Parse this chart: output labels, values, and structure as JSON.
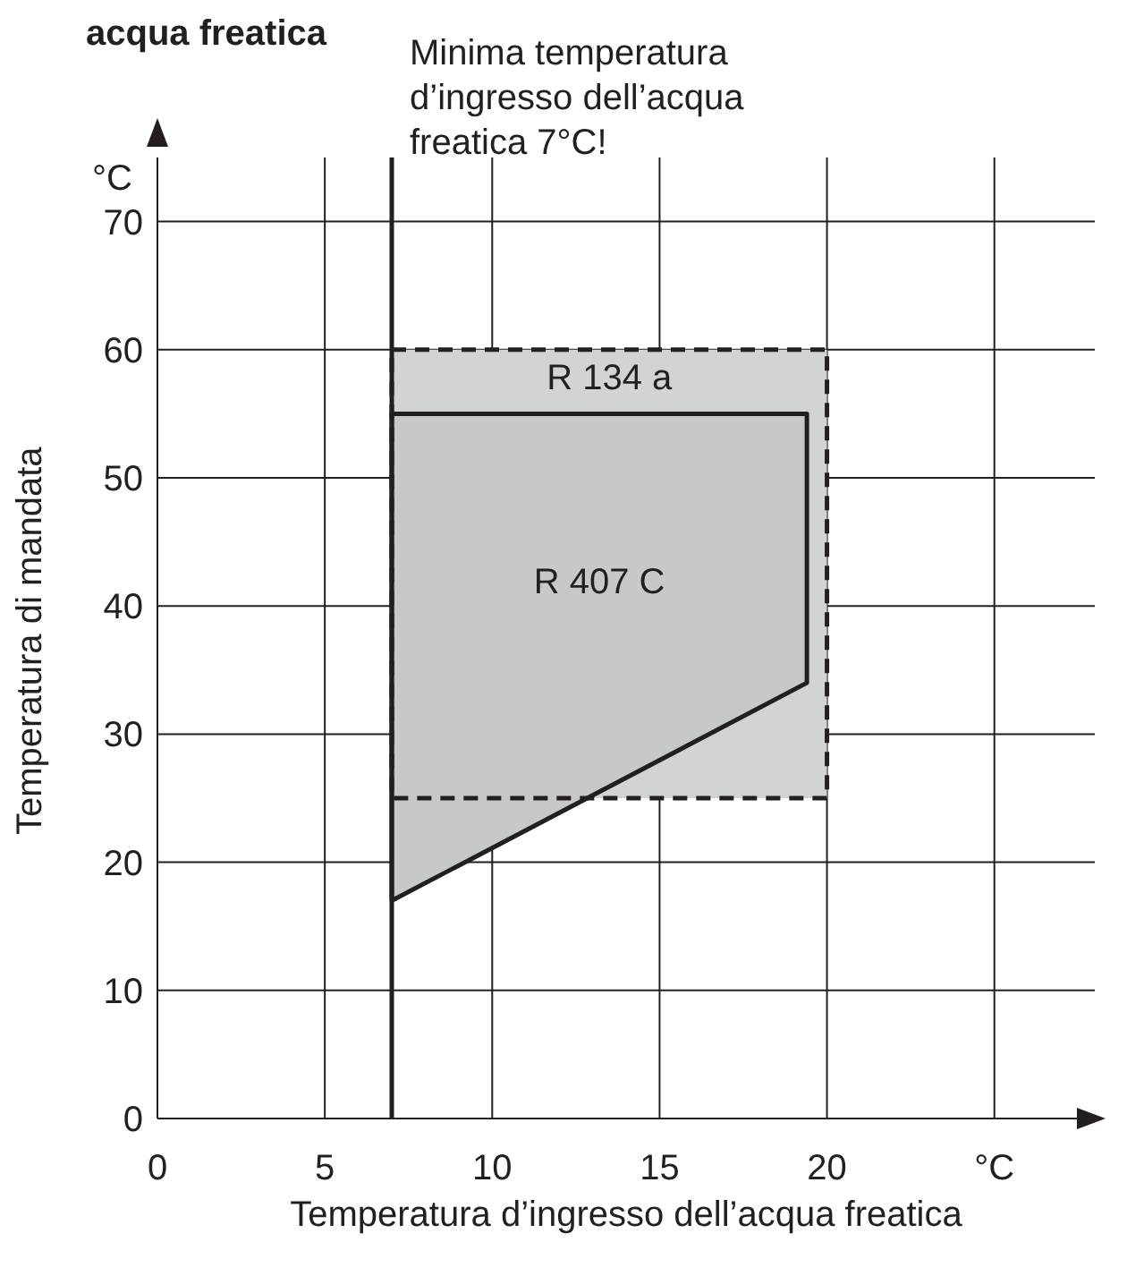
{
  "chart_data": {
    "type": "area",
    "title": "acqua freatica",
    "xlabel": "Temperatura d’ingresso dell’acqua freatica",
    "ylabel": "Temperatura di mandata",
    "annotations": [
      "°C"
    ],
    "xlim": [
      0,
      28
    ],
    "xticks": [
      0,
      5,
      10,
      15,
      20,
      {
        "value": 25,
        "label": "°C"
      }
    ],
    "ylim": [
      0,
      75
    ],
    "yticks": [
      0,
      10,
      20,
      30,
      40,
      50,
      60,
      70
    ],
    "grid": true,
    "marker": "none",
    "series": [
      {
        "name": "R 134 a",
        "color": "#d1d3d4",
        "line_style": "dashed",
        "x": [
          7,
          20,
          20,
          7,
          7
        ],
        "values": [
          60,
          60,
          25,
          25,
          60
        ]
      },
      {
        "name": "R 407 C",
        "color": "#c6c8ca",
        "line_style": "solid",
        "x": [
          7,
          19.4,
          19.4,
          7,
          7
        ],
        "values": [
          17,
          34,
          55,
          55,
          17
        ]
      }
    ],
    "ref_lines": [
      {
        "axis": "x",
        "value": 7,
        "label": "Minima temperatura d’ingresso dell’acqua freatica 7°C!",
        "color": "#231f20"
      }
    ]
  }
}
